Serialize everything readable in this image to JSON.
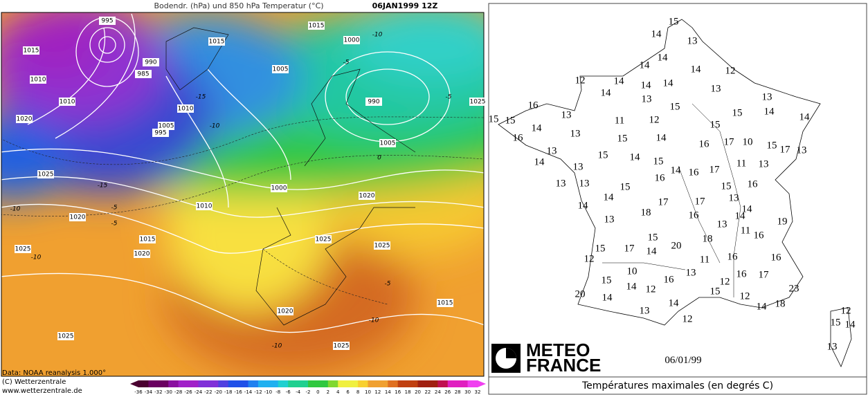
{
  "left_map": {
    "title": "Bodendr. (hPa) und 850 hPa Temperatur (°C)",
    "date": "06JAN1999 12Z",
    "isobar_labels": [
      995,
      1015,
      990,
      985,
      1010,
      1010,
      1020,
      1010,
      1005,
      995,
      1025,
      1020,
      1025,
      1020,
      1015,
      1010,
      1000,
      1015,
      1015,
      1000,
      1005,
      990,
      1025,
      1005,
      1020,
      1025,
      1025,
      1020,
      1025,
      1025,
      1015
    ],
    "temperature_labels": [
      -10,
      -15,
      -10,
      -5,
      -10,
      -5,
      -10,
      -15,
      -5,
      0,
      -5,
      -10,
      -10,
      -5
    ],
    "credits": [
      "Data: NOAA reanalysis 1.000°",
      "(C) Wetterzentrale",
      "www.wetterzentrale.de"
    ],
    "colorbar_ticks": [
      -36,
      -34,
      -32,
      -30,
      -28,
      -26,
      -24,
      -22,
      -20,
      -18,
      -16,
      -14,
      -12,
      -10,
      -8,
      -6,
      -4,
      -2,
      0,
      2,
      4,
      6,
      8,
      10,
      12,
      14,
      16,
      18,
      20,
      22,
      24,
      26,
      28,
      30,
      32
    ]
  },
  "right_map": {
    "logo": [
      "METEO",
      "FRANCE"
    ],
    "date": "06/01/99",
    "caption": "Températures maximales (en degrés C)",
    "temperatures": [
      15,
      14,
      13,
      14,
      14,
      14,
      12,
      12,
      14,
      14,
      14,
      14,
      13,
      13,
      13,
      15,
      14,
      15,
      14,
      16,
      13,
      15,
      15,
      11,
      12,
      15,
      14,
      13,
      15,
      14,
      16,
      16,
      17,
      10,
      15,
      17,
      13,
      13,
      15,
      14,
      14,
      15,
      13,
      11,
      13,
      14,
      16,
      16,
      17,
      13,
      13,
      15,
      15,
      16,
      14,
      13,
      17,
      17,
      14,
      14,
      14,
      18,
      16,
      13,
      19,
      13,
      11,
      16,
      15,
      18,
      15,
      17,
      14,
      20,
      12,
      11,
      16,
      16,
      10,
      13,
      16,
      17,
      15,
      16,
      14,
      12,
      12,
      15,
      23,
      20,
      14,
      12,
      14,
      14,
      18,
      13,
      12,
      12,
      15,
      14,
      13
    ]
  }
}
